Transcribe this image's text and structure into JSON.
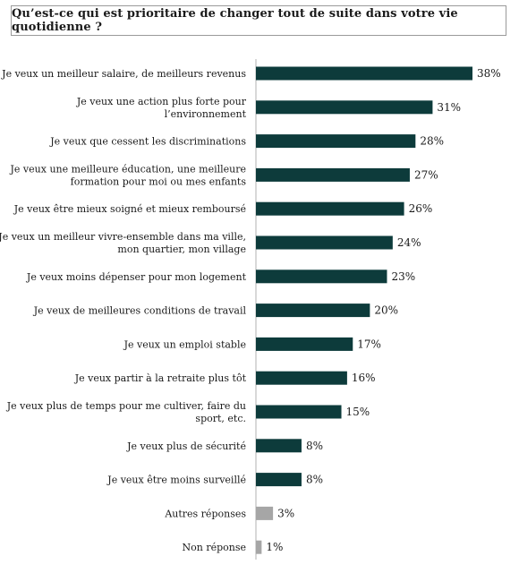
{
  "chart_data": {
    "type": "bar",
    "orientation": "horizontal",
    "title": "Qu’est-ce qui est prioritaire de changer tout de suite dans votre vie quotidienne ?",
    "categories": [
      [
        "Je veux un meilleur salaire, de meilleurs revenus"
      ],
      [
        "Je veux une action plus forte pour",
        "l’environnement"
      ],
      [
        "Je veux que cessent les discriminations"
      ],
      [
        "Je veux une meilleure éducation, une meilleure",
        "formation pour moi ou mes enfants"
      ],
      [
        "Je veux être mieux soigné et mieux remboursé"
      ],
      [
        "Je veux un meilleur vivre-ensemble dans ma ville,",
        "mon quartier, mon village"
      ],
      [
        "Je veux moins dépenser pour mon logement"
      ],
      [
        "Je veux de meilleures conditions de travail"
      ],
      [
        "Je veux un emploi stable"
      ],
      [
        "Je veux partir à la retraite plus tôt"
      ],
      [
        "Je veux plus de temps pour me cultiver, faire du",
        "sport, etc."
      ],
      [
        "Je veux plus de sécurité"
      ],
      [
        "Je veux être moins surveillé"
      ],
      [
        "Autres réponses"
      ],
      [
        "Non réponse"
      ]
    ],
    "values": [
      38,
      31,
      28,
      27,
      26,
      24,
      23,
      20,
      17,
      16,
      15,
      8,
      8,
      3,
      1
    ],
    "value_labels": [
      "38%",
      "31%",
      "28%",
      "27%",
      "26%",
      "24%",
      "23%",
      "20%",
      "17%",
      "16%",
      "15%",
      "8%",
      "8%",
      "3%",
      "1%"
    ],
    "bar_colors": [
      "#0d3b3b",
      "#0d3b3b",
      "#0d3b3b",
      "#0d3b3b",
      "#0d3b3b",
      "#0d3b3b",
      "#0d3b3b",
      "#0d3b3b",
      "#0d3b3b",
      "#0d3b3b",
      "#0d3b3b",
      "#0d3b3b",
      "#0d3b3b",
      "#a6a6a6",
      "#a6a6a6"
    ],
    "xlim": [
      0,
      38
    ],
    "axis_color": "#b0b0b0",
    "grid": false,
    "legend": "none"
  }
}
